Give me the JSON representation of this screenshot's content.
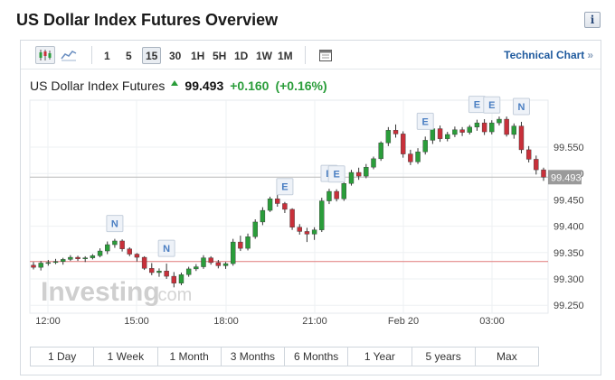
{
  "page": {
    "title": "US Dollar Index Futures Overview",
    "info_icon": "i"
  },
  "toolbar": {
    "chart_type_icons": [
      "candlestick-icon",
      "line-chart-icon"
    ],
    "periods": [
      "1",
      "5",
      "15",
      "30",
      "1H",
      "5H",
      "1D",
      "1W",
      "1M"
    ],
    "active_period": "15",
    "calendar_icon": "calendar-icon",
    "technical_chart_label": "Technical Chart",
    "technical_chart_chevron": "»"
  },
  "quote": {
    "name": "US Dollar Index Futures",
    "price": "99.493",
    "change": "+0.160",
    "change_pct": "(+0.16%)",
    "up_color": "#2a9d3a",
    "down_color": "#c8303a"
  },
  "watermark": {
    "brand": "Investing",
    "suffix": ".com"
  },
  "chart_data": {
    "type": "candlestick",
    "title": "",
    "y_ticks": [
      "99.550",
      "99.500",
      "99.450",
      "99.400",
      "99.350",
      "99.300",
      "99.250"
    ],
    "y_range": [
      99.24,
      99.63
    ],
    "x_ticks": [
      "12:00",
      "15:00",
      "18:00",
      "21:00",
      "Feb 20",
      "03:00"
    ],
    "last_price_label": "99.493",
    "last_price": 99.493,
    "reference_price": 99.333,
    "event_markers": [
      {
        "label": "N",
        "index": 11
      },
      {
        "label": "N",
        "index": 18
      },
      {
        "label": "E",
        "index": 34
      },
      {
        "label": "E",
        "index": 40
      },
      {
        "label": "E",
        "index": 41
      },
      {
        "label": "E",
        "index": 53
      },
      {
        "label": "E",
        "index": 60
      },
      {
        "label": "E",
        "index": 62
      },
      {
        "label": "N",
        "index": 66
      }
    ],
    "candles": [
      [
        99.326,
        99.332,
        99.318,
        99.322
      ],
      [
        99.322,
        99.334,
        99.316,
        99.33
      ],
      [
        99.33,
        99.336,
        99.325,
        99.331
      ],
      [
        99.331,
        99.338,
        99.328,
        99.333
      ],
      [
        99.333,
        99.34,
        99.327,
        99.337
      ],
      [
        99.337,
        99.345,
        99.334,
        99.341
      ],
      [
        99.341,
        99.344,
        99.334,
        99.338
      ],
      [
        99.338,
        99.343,
        99.332,
        99.34
      ],
      [
        99.34,
        99.347,
        99.337,
        99.344
      ],
      [
        99.344,
        99.358,
        99.341,
        99.353
      ],
      [
        99.353,
        99.371,
        99.347,
        99.365
      ],
      [
        99.365,
        99.376,
        99.359,
        99.372
      ],
      [
        99.372,
        99.375,
        99.352,
        99.357
      ],
      [
        99.357,
        99.36,
        99.343,
        99.347
      ],
      [
        99.347,
        99.349,
        99.333,
        99.341
      ],
      [
        99.341,
        99.343,
        99.317,
        99.32
      ],
      [
        99.32,
        99.33,
        99.307,
        99.312
      ],
      [
        99.312,
        99.32,
        99.304,
        99.315
      ],
      [
        99.315,
        99.329,
        99.3,
        99.305
      ],
      [
        99.305,
        99.313,
        99.284,
        99.292
      ],
      [
        99.292,
        99.312,
        99.288,
        99.308
      ],
      [
        99.308,
        99.323,
        99.304,
        99.319
      ],
      [
        99.319,
        99.328,
        99.315,
        99.323
      ],
      [
        99.323,
        99.345,
        99.319,
        99.34
      ],
      [
        99.34,
        99.343,
        99.327,
        99.331
      ],
      [
        99.331,
        99.336,
        99.32,
        99.325
      ],
      [
        99.325,
        99.332,
        99.319,
        99.329
      ],
      [
        99.329,
        99.376,
        99.325,
        99.37
      ],
      [
        99.37,
        99.382,
        99.353,
        99.358
      ],
      [
        99.358,
        99.386,
        99.354,
        99.38
      ],
      [
        99.38,
        99.413,
        99.376,
        99.408
      ],
      [
        99.408,
        99.436,
        99.402,
        99.43
      ],
      [
        99.43,
        99.456,
        99.427,
        99.452
      ],
      [
        99.452,
        99.47,
        99.437,
        99.443
      ],
      [
        99.443,
        99.446,
        99.425,
        99.432
      ],
      [
        99.432,
        99.434,
        99.393,
        99.398
      ],
      [
        99.398,
        99.404,
        99.384,
        99.39
      ],
      [
        99.39,
        99.397,
        99.37,
        99.385
      ],
      [
        99.385,
        99.398,
        99.374,
        99.393
      ],
      [
        99.393,
        99.454,
        99.389,
        99.448
      ],
      [
        99.448,
        99.471,
        99.442,
        99.466
      ],
      [
        99.466,
        99.47,
        99.447,
        99.452
      ],
      [
        99.452,
        99.486,
        99.448,
        99.481
      ],
      [
        99.481,
        99.507,
        99.477,
        99.502
      ],
      [
        99.502,
        99.511,
        99.488,
        99.495
      ],
      [
        99.495,
        99.518,
        99.491,
        99.512
      ],
      [
        99.512,
        99.532,
        99.508,
        99.528
      ],
      [
        99.528,
        99.561,
        99.524,
        99.558
      ],
      [
        99.558,
        99.588,
        99.552,
        99.582
      ],
      [
        99.582,
        99.593,
        99.568,
        99.575
      ],
      [
        99.575,
        99.58,
        99.53,
        99.537
      ],
      [
        99.537,
        99.545,
        99.516,
        99.522
      ],
      [
        99.522,
        99.548,
        99.518,
        99.541
      ],
      [
        99.541,
        99.57,
        99.536,
        99.563
      ],
      [
        99.563,
        99.591,
        99.556,
        99.585
      ],
      [
        99.585,
        99.591,
        99.56,
        99.566
      ],
      [
        99.566,
        99.579,
        99.561,
        99.574
      ],
      [
        99.574,
        99.589,
        99.569,
        99.583
      ],
      [
        99.583,
        99.588,
        99.571,
        99.578
      ],
      [
        99.578,
        99.592,
        99.574,
        99.588
      ],
      [
        99.588,
        99.602,
        99.581,
        99.596
      ],
      [
        99.596,
        99.603,
        99.573,
        99.579
      ],
      [
        99.579,
        99.601,
        99.574,
        99.596
      ],
      [
        99.596,
        99.608,
        99.591,
        99.603
      ],
      [
        99.603,
        99.608,
        99.57,
        99.574
      ],
      [
        99.574,
        99.595,
        99.566,
        99.59
      ],
      [
        99.59,
        99.598,
        99.538,
        99.545
      ],
      [
        99.545,
        99.552,
        99.521,
        99.527
      ],
      [
        99.527,
        99.534,
        99.498,
        99.507
      ],
      [
        99.507,
        99.511,
        99.486,
        99.493
      ]
    ]
  },
  "ranges": [
    "1 Day",
    "1 Week",
    "1 Month",
    "3 Months",
    "6 Months",
    "1 Year",
    "5 years",
    "Max"
  ]
}
